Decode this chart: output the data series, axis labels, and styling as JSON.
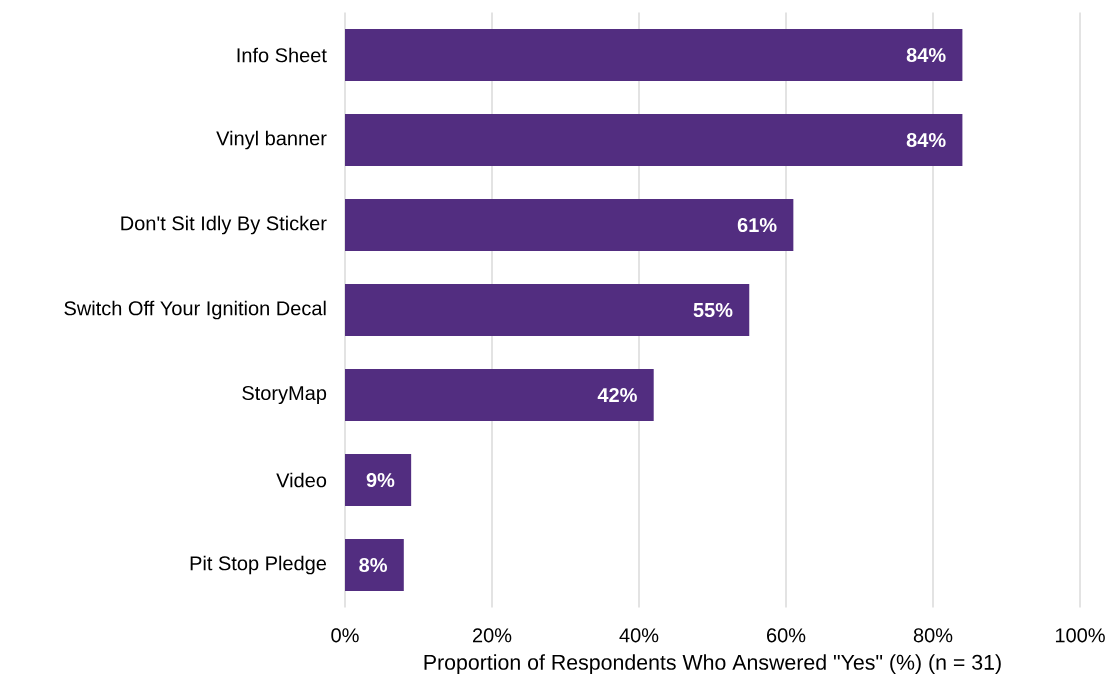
{
  "chart_data": {
    "type": "bar",
    "orientation": "horizontal",
    "categories": [
      "Info Sheet",
      "Vinyl banner",
      "Don't Sit Idly By Sticker",
      "Switch Off Your Ignition Decal",
      "StoryMap",
      "Video",
      "Pit Stop Pledge"
    ],
    "values": [
      84,
      84,
      61,
      55,
      42,
      9,
      8
    ],
    "value_labels": [
      "84%",
      "84%",
      "61%",
      "55%",
      "42%",
      "9%",
      "8%"
    ],
    "color": "#522d80",
    "xlabel": "Proportion of Respondents Who Answered \"Yes\" (%) (n = 31)",
    "xlim": [
      0,
      100
    ],
    "xticks": [
      {
        "value": 0,
        "label": "0%"
      },
      {
        "value": 20,
        "label": "20%"
      },
      {
        "value": 40,
        "label": "40%"
      },
      {
        "value": 60,
        "label": "60%"
      },
      {
        "value": 80,
        "label": "80%"
      },
      {
        "value": 100,
        "label": "100%"
      }
    ],
    "grid": "x"
  }
}
